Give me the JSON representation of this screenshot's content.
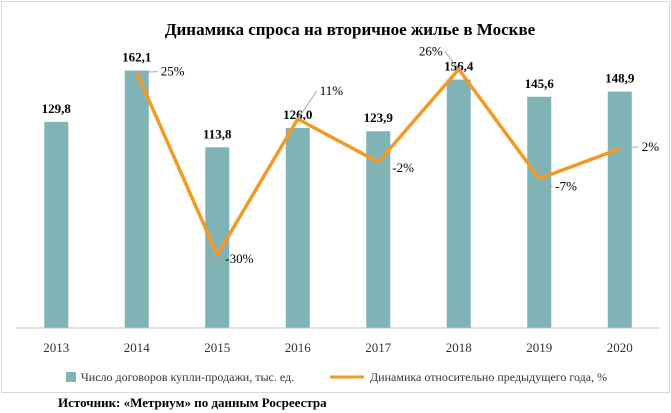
{
  "chart_data": {
    "type": "bar",
    "title": "Динамика спроса на вторичное жилье в Москве",
    "categories": [
      "2013",
      "2014",
      "2015",
      "2016",
      "2017",
      "2018",
      "2019",
      "2020"
    ],
    "series": [
      {
        "name": "Число договоров купли-продажи, тыс. ед.",
        "type": "bar",
        "values": [
          129.8,
          162.1,
          113.8,
          126.0,
          123.9,
          156.4,
          145.6,
          148.9
        ],
        "labels": [
          "129,8",
          "162,1",
          "113,8",
          "126,0",
          "123,9",
          "156,4",
          "145,6",
          "148,9"
        ],
        "color": "#7fb3b5"
      },
      {
        "name": "Динамика относительно предыдущего года, %",
        "type": "line",
        "values": [
          null,
          25,
          -30,
          11,
          -2,
          26,
          -7,
          2
        ],
        "labels": [
          "",
          "25%",
          "-30%",
          "11%",
          "-2%",
          "26%",
          "-7%",
          "2%"
        ],
        "color": "#f39a26"
      }
    ],
    "ylim": [
      0,
      170
    ],
    "y2lim": [
      -40,
      30
    ],
    "grid": false,
    "legend": "bottom"
  },
  "source": "Источник: «Метриум» по данным Росреестра"
}
